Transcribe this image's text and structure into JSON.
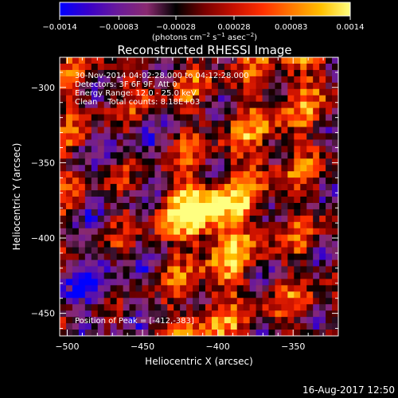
{
  "chart_data": {
    "type": "heatmap",
    "title": "Reconstructed RHESSI Image",
    "xlabel": "Heliocentric X (arcsec)",
    "ylabel": "Heliocentric Y (arcsec)",
    "xlim": [
      -505,
      -320
    ],
    "ylim": [
      -465,
      -280
    ],
    "x_ticks": [
      -500,
      -450,
      -400,
      -350
    ],
    "x_tick_labels": [
      "−500",
      "−450",
      "−400",
      "−350"
    ],
    "y_ticks": [
      -300,
      -350,
      -400,
      -450
    ],
    "y_tick_labels": [
      "−300",
      "−350",
      "−400",
      "−450"
    ],
    "colorbar": {
      "range": [
        -0.0014,
        0.0014
      ],
      "ticks": [
        -0.0014,
        -0.00083,
        -0.00028,
        0.00028,
        0.00083,
        0.0014
      ],
      "tick_labels": [
        "−0.0014",
        "−0.00083",
        "−0.00028",
        "0.00028",
        "0.00083",
        "0.0014"
      ],
      "units_prefix": "(photons cm",
      "units_exp1": "−2",
      "units_mid1": " s",
      "units_exp2": "−1",
      "units_mid2": " asec",
      "units_exp3": "−2",
      "units_suffix": ")",
      "colormap": [
        "#0000ff",
        "#3a00c8",
        "#6a1a9a",
        "#8a2a70",
        "#000000",
        "#7a0000",
        "#c81000",
        "#ff3000",
        "#ff7a00",
        "#ffc000",
        "#ffff80"
      ]
    },
    "annotations": [
      "30-Nov-2014 04:02:28.000 to 04:12:28.000",
      "Detectors: 3F 6F 9F, Att 0",
      "Energy Range: 12.0 - 25.0 keV",
      "Clean    Total counts: 8.18E+03"
    ],
    "peak_label": "Position of Peak = [-412,-383]",
    "peak": {
      "x": -412,
      "y": -383
    }
  },
  "footer": {
    "timestamp": "16-Aug-2017 12:50"
  }
}
